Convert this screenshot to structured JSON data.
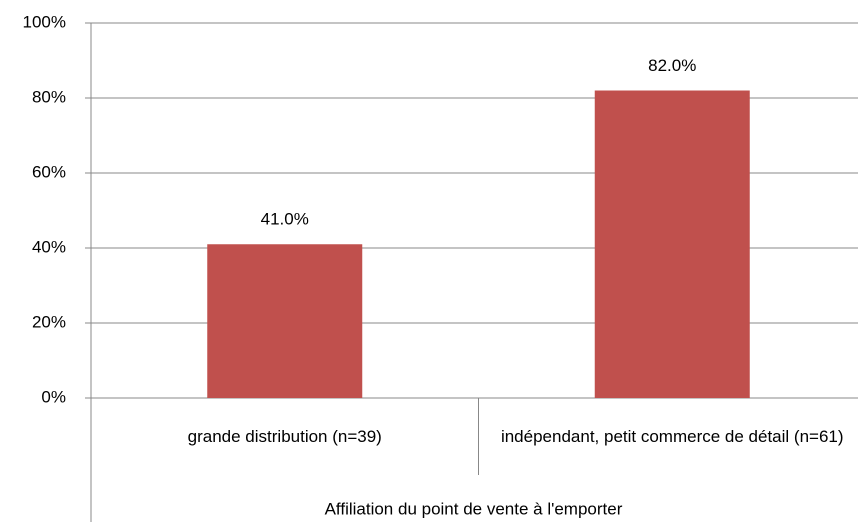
{
  "chart_data": {
    "type": "bar",
    "categories": [
      "grande distribution (n=39)",
      "indépendant, petit commerce de détail (n=61)"
    ],
    "values": [
      41.0,
      82.0
    ],
    "value_labels": [
      "41.0%",
      "82.0%"
    ],
    "color": "#c0504d",
    "x_label": "Affiliation du point de vente à l'emporter",
    "ylim": [
      0,
      100
    ],
    "yticks": [
      {
        "value": 0,
        "label": "0%"
      },
      {
        "value": 20,
        "label": "20%"
      },
      {
        "value": 40,
        "label": "40%"
      },
      {
        "value": 60,
        "label": "60%"
      },
      {
        "value": 80,
        "label": "80%"
      },
      {
        "value": 100,
        "label": "100%"
      }
    ],
    "grid": true
  }
}
